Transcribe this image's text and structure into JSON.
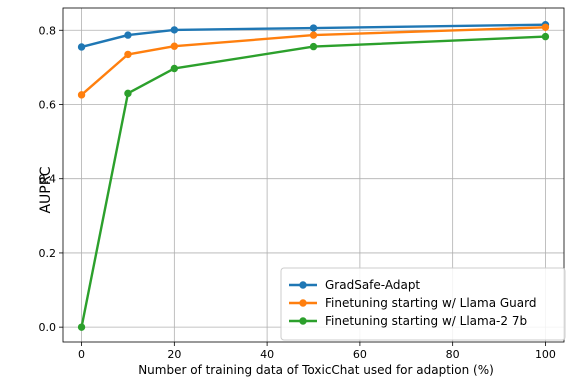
{
  "chart_data": {
    "type": "line",
    "title": "",
    "xlabel": "Number of training data of ToxicChat used for adaption (%)",
    "ylabel": "AUPRC",
    "xlim": [
      -4,
      104
    ],
    "ylim": [
      -0.04,
      0.86
    ],
    "xticks": [
      0,
      20,
      40,
      60,
      80,
      100
    ],
    "yticks": [
      0.0,
      0.2,
      0.4,
      0.6,
      0.8
    ],
    "xtick_labels": [
      "0",
      "20",
      "40",
      "60",
      "80",
      "100"
    ],
    "ytick_labels": [
      "0.0",
      "0.2",
      "0.4",
      "0.6",
      "0.8"
    ],
    "grid": true,
    "legend_position": "bottom-right",
    "x": [
      0,
      10,
      20,
      50,
      100
    ],
    "series": [
      {
        "name": "GradSafe-Adapt",
        "color": "#1f77b4",
        "values": [
          0.755,
          0.787,
          0.801,
          0.806,
          0.815
        ]
      },
      {
        "name": "Finetuning starting w/ Llama Guard",
        "color": "#ff7f0e",
        "values": [
          0.626,
          0.735,
          0.757,
          0.787,
          0.808
        ]
      },
      {
        "name": "Finetuning starting w/ Llama-2 7b",
        "color": "#2ca02c",
        "values": [
          0.0,
          0.63,
          0.697,
          0.756,
          0.783
        ]
      }
    ]
  }
}
